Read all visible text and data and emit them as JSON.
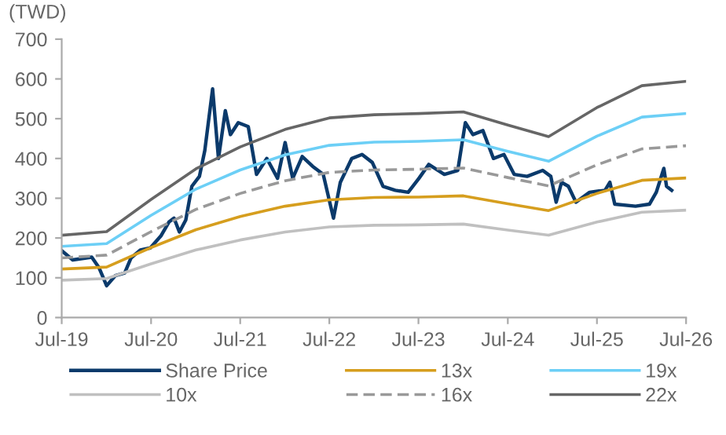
{
  "chart_data": {
    "type": "line",
    "ylabel": "(TWD)",
    "xlim": [
      "2019-07-01",
      "2026-07-01"
    ],
    "xticks": [
      {
        "value": "2019-07-01",
        "label": "Jul-19"
      },
      {
        "value": "2020-07-01",
        "label": "Jul-20"
      },
      {
        "value": "2021-07-01",
        "label": "Jul-21"
      },
      {
        "value": "2022-07-01",
        "label": "Jul-22"
      },
      {
        "value": "2023-07-01",
        "label": "Jul-23"
      },
      {
        "value": "2024-07-01",
        "label": "Jul-24"
      },
      {
        "value": "2025-07-01",
        "label": "Jul-25"
      },
      {
        "value": "2026-07-01",
        "label": "Jul-26"
      }
    ],
    "ylim": [
      0,
      700
    ],
    "yticks": [
      0,
      100,
      200,
      300,
      400,
      500,
      600,
      700
    ],
    "grid": false,
    "legend": "bottom",
    "marker": "none",
    "series": [
      {
        "name": "Share Price",
        "color": "#0b3a6b",
        "line_style": "solid",
        "x": [
          "2019-07-01",
          "2019-08-15",
          "2019-11-01",
          "2019-12-01",
          "2020-01-01",
          "2020-02-05",
          "2020-03-15",
          "2020-04-10",
          "2020-05-18",
          "2020-06-28",
          "2020-08-10",
          "2020-09-12",
          "2020-10-03",
          "2020-10-25",
          "2020-11-20",
          "2020-12-15",
          "2021-01-15",
          "2021-02-06",
          "2021-03-10",
          "2021-04-03",
          "2021-05-01",
          "2021-05-22",
          "2021-06-23",
          "2021-08-03",
          "2021-09-06",
          "2021-10-18",
          "2021-12-01",
          "2022-01-01",
          "2022-02-01",
          "2022-03-12",
          "2022-04-24",
          "2022-06-06",
          "2022-07-18",
          "2022-08-15",
          "2022-10-01",
          "2022-11-12",
          "2022-12-24",
          "2023-02-06",
          "2023-03-28",
          "2023-05-20",
          "2023-07-03",
          "2023-08-12",
          "2023-10-15",
          "2023-12-09",
          "2024-01-09",
          "2024-02-09",
          "2024-03-21",
          "2024-05-03",
          "2024-06-15",
          "2024-07-27",
          "2024-09-18",
          "2024-11-21",
          "2024-12-24",
          "2025-01-15",
          "2025-02-06",
          "2025-03-06",
          "2025-04-06",
          "2025-06-01",
          "2025-08-03",
          "2025-08-23",
          "2025-09-12",
          "2025-12-06",
          "2026-02-01",
          "2026-03-01",
          "2026-04-01",
          "2026-04-12",
          "2026-05-03"
        ],
        "values": [
          168,
          145,
          152,
          125,
          80,
          105,
          112,
          150,
          170,
          175,
          205,
          240,
          250,
          215,
          245,
          330,
          355,
          420,
          575,
          400,
          520,
          460,
          490,
          480,
          360,
          400,
          350,
          440,
          350,
          405,
          380,
          360,
          250,
          340,
          400,
          410,
          390,
          330,
          320,
          315,
          350,
          385,
          360,
          370,
          490,
          460,
          470,
          400,
          410,
          360,
          355,
          370,
          355,
          290,
          340,
          330,
          290,
          315,
          320,
          340,
          285,
          280,
          285,
          315,
          375,
          330,
          320
        ]
      },
      {
        "name": "10x",
        "color": "#c0c0c0",
        "line_style": "solid",
        "values": [
          94,
          98,
          135,
          170,
          195,
          215,
          228,
          232,
          233,
          235,
          220,
          207,
          240,
          265,
          270
        ]
      },
      {
        "name": "13x",
        "color": "#d69e1e",
        "line_style": "solid",
        "values": [
          122,
          127,
          176,
          221,
          254,
          280,
          296,
          302,
          303,
          306,
          286,
          269,
          312,
          345,
          351
        ]
      },
      {
        "name": "16x",
        "color": "#999999",
        "line_style": "dashed",
        "values": [
          150,
          157,
          216,
          272,
          312,
          344,
          365,
          371,
          373,
          376,
          352,
          331,
          384,
          424,
          432
        ]
      },
      {
        "name": "19x",
        "color": "#6ccff6",
        "line_style": "solid",
        "values": [
          179,
          186,
          257,
          323,
          371,
          409,
          433,
          441,
          443,
          447,
          418,
          393,
          456,
          504,
          513
        ]
      },
      {
        "name": "22x",
        "color": "#666666",
        "line_style": "solid",
        "values": [
          207,
          216,
          297,
          374,
          429,
          473,
          502,
          510,
          513,
          517,
          484,
          455,
          528,
          583,
          594
        ]
      }
    ],
    "x": [
      "2019-07-01",
      "2020-01-01",
      "2020-07-01",
      "2021-01-01",
      "2021-07-01",
      "2022-01-01",
      "2022-07-01",
      "2023-01-01",
      "2023-07-01",
      "2024-01-01",
      "2024-07-01",
      "2024-12-15",
      "2025-07-01",
      "2026-01-01",
      "2026-07-01"
    ]
  }
}
